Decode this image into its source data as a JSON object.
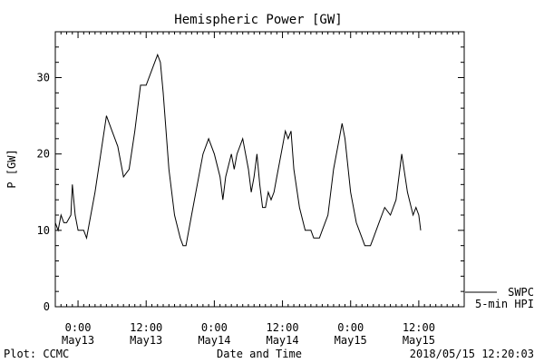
{
  "chart_data": {
    "type": "line",
    "title": "Hemispheric Power [GW]",
    "xlabel": "Date and Time",
    "ylabel": "P [GW]",
    "ylim": [
      0,
      36
    ],
    "yticks": [
      0,
      10,
      20,
      30
    ],
    "xlim": [
      "2018-05-12T20:00",
      "2018-05-15T20:00"
    ],
    "xticks": [
      {
        "t": "2018-05-13T00:00",
        "label1": "0:00",
        "label2": "May13"
      },
      {
        "t": "2018-05-13T12:00",
        "label1": "12:00",
        "label2": "May13"
      },
      {
        "t": "2018-05-14T00:00",
        "label1": "0:00",
        "label2": "May14"
      },
      {
        "t": "2018-05-14T12:00",
        "label1": "12:00",
        "label2": "May14"
      },
      {
        "t": "2018-05-15T00:00",
        "label1": "0:00",
        "label2": "May15"
      },
      {
        "t": "2018-05-15T12:00",
        "label1": "12:00",
        "label2": "May15"
      }
    ],
    "legend": {
      "line1": "SWPC",
      "line2": "5-min HPI",
      "placement": "right-bottom"
    },
    "series": [
      {
        "name": "SWPC",
        "points": [
          [
            "2018-05-12T20:00",
            11
          ],
          [
            "2018-05-12T20:30",
            10
          ],
          [
            "2018-05-12T21:00",
            12
          ],
          [
            "2018-05-12T21:30",
            11
          ],
          [
            "2018-05-12T22:00",
            11
          ],
          [
            "2018-05-12T22:45",
            12
          ],
          [
            "2018-05-12T23:00",
            16
          ],
          [
            "2018-05-12T23:30",
            12
          ],
          [
            "2018-05-13T00:00",
            10
          ],
          [
            "2018-05-13T01:00",
            10
          ],
          [
            "2018-05-13T01:30",
            9
          ],
          [
            "2018-05-13T02:00",
            11
          ],
          [
            "2018-05-13T03:00",
            15
          ],
          [
            "2018-05-13T04:00",
            20
          ],
          [
            "2018-05-13T05:00",
            25
          ],
          [
            "2018-05-13T06:00",
            23
          ],
          [
            "2018-05-13T07:00",
            21
          ],
          [
            "2018-05-13T08:00",
            17
          ],
          [
            "2018-05-13T09:00",
            18
          ],
          [
            "2018-05-13T10:00",
            23
          ],
          [
            "2018-05-13T11:00",
            29
          ],
          [
            "2018-05-13T12:00",
            29
          ],
          [
            "2018-05-13T13:00",
            31
          ],
          [
            "2018-05-13T14:00",
            33
          ],
          [
            "2018-05-13T14:30",
            32
          ],
          [
            "2018-05-13T15:00",
            28
          ],
          [
            "2018-05-13T16:00",
            18
          ],
          [
            "2018-05-13T17:00",
            12
          ],
          [
            "2018-05-13T18:00",
            9
          ],
          [
            "2018-05-13T18:30",
            8
          ],
          [
            "2018-05-13T19:00",
            8
          ],
          [
            "2018-05-13T20:00",
            12
          ],
          [
            "2018-05-13T21:00",
            16
          ],
          [
            "2018-05-13T22:00",
            20
          ],
          [
            "2018-05-13T23:00",
            22
          ],
          [
            "2018-05-14T00:00",
            20
          ],
          [
            "2018-05-14T01:00",
            17
          ],
          [
            "2018-05-14T01:30",
            14
          ],
          [
            "2018-05-14T02:00",
            17
          ],
          [
            "2018-05-14T03:00",
            20
          ],
          [
            "2018-05-14T03:30",
            18
          ],
          [
            "2018-05-14T04:00",
            20
          ],
          [
            "2018-05-14T05:00",
            22
          ],
          [
            "2018-05-14T06:00",
            18
          ],
          [
            "2018-05-14T06:30",
            15
          ],
          [
            "2018-05-14T07:00",
            17
          ],
          [
            "2018-05-14T07:30",
            20
          ],
          [
            "2018-05-14T08:00",
            16
          ],
          [
            "2018-05-14T08:30",
            13
          ],
          [
            "2018-05-14T09:00",
            13
          ],
          [
            "2018-05-14T09:30",
            15
          ],
          [
            "2018-05-14T10:00",
            14
          ],
          [
            "2018-05-14T10:30",
            15
          ],
          [
            "2018-05-14T11:00",
            17
          ],
          [
            "2018-05-14T12:00",
            21
          ],
          [
            "2018-05-14T12:30",
            23
          ],
          [
            "2018-05-14T13:00",
            22
          ],
          [
            "2018-05-14T13:30",
            23
          ],
          [
            "2018-05-14T14:00",
            18
          ],
          [
            "2018-05-14T15:00",
            13
          ],
          [
            "2018-05-14T16:00",
            10
          ],
          [
            "2018-05-14T17:00",
            10
          ],
          [
            "2018-05-14T17:30",
            9
          ],
          [
            "2018-05-14T18:30",
            9
          ],
          [
            "2018-05-14T19:00",
            10
          ],
          [
            "2018-05-14T20:00",
            12
          ],
          [
            "2018-05-14T21:00",
            18
          ],
          [
            "2018-05-14T22:00",
            22
          ],
          [
            "2018-05-14T22:30",
            24
          ],
          [
            "2018-05-14T23:00",
            22
          ],
          [
            "2018-05-15T00:00",
            15
          ],
          [
            "2018-05-15T01:00",
            11
          ],
          [
            "2018-05-15T02:00",
            9
          ],
          [
            "2018-05-15T02:30",
            8
          ],
          [
            "2018-05-15T03:30",
            8
          ],
          [
            "2018-05-15T04:00",
            9
          ],
          [
            "2018-05-15T05:00",
            11
          ],
          [
            "2018-05-15T06:00",
            13
          ],
          [
            "2018-05-15T07:00",
            12
          ],
          [
            "2018-05-15T08:00",
            14
          ],
          [
            "2018-05-15T09:00",
            20
          ],
          [
            "2018-05-15T10:00",
            15
          ],
          [
            "2018-05-15T11:00",
            12
          ],
          [
            "2018-05-15T11:30",
            13
          ],
          [
            "2018-05-15T12:00",
            12
          ],
          [
            "2018-05-15T12:20",
            10
          ]
        ]
      }
    ],
    "grid": false
  },
  "footer": {
    "left": "Plot: CCMC",
    "right": "2018/05/15 12:20:03"
  },
  "colors": {
    "line": "#000000",
    "background": "#ffffff"
  }
}
